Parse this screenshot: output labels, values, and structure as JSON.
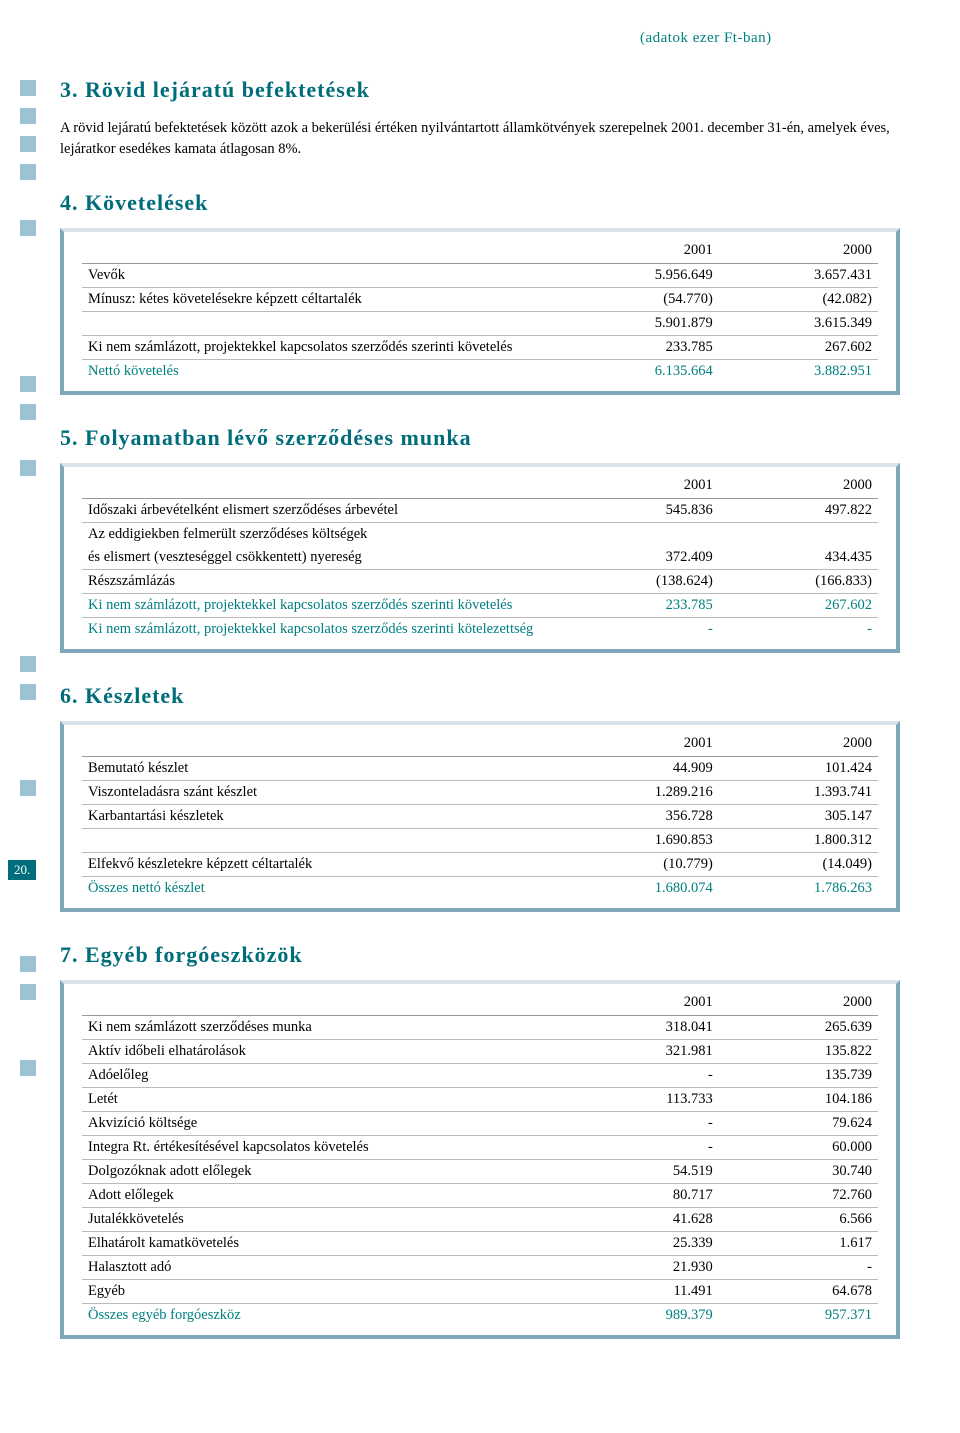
{
  "colors": {
    "accent": "#006d7a",
    "teal_text": "#008080",
    "square": "#9cc3d4",
    "table_border": "#7fa8b8"
  },
  "page_number": "20.",
  "unit_note": "(adatok ezer Ft-ban)",
  "sections": {
    "s3": {
      "heading": "3. Rövid lejáratú befektetések",
      "intro": "A rövid lejáratú befektetések között azok a bekerülési értéken nyilvántartott államkötvények szerepelnek 2001. december 31-én, amelyek éves, lejáratkor esedékes kamata átlagosan 8%."
    },
    "s4": {
      "heading": "4. Követelések",
      "col1": "2001",
      "col2": "2000",
      "rows": [
        {
          "label": "Vevők",
          "v1": "5.956.649",
          "v2": "3.657.431"
        },
        {
          "label": "Mínusz: kétes követelésekre képzett céltartalék",
          "v1": "(54.770)",
          "v2": "(42.082)"
        },
        {
          "label": "",
          "v1": "5.901.879",
          "v2": "3.615.349"
        },
        {
          "label": "Ki nem számlázott, projektekkel kapcsolatos szerződés szerinti követelés",
          "v1": "233.785",
          "v2": "267.602"
        },
        {
          "label": "Nettó követelés",
          "v1": "6.135.664",
          "v2": "3.882.951",
          "teal": true
        }
      ]
    },
    "s5": {
      "heading": "5. Folyamatban lévő szerződéses munka",
      "col1": "2001",
      "col2": "2000",
      "rows": [
        {
          "label": "Időszaki árbevételként elismert szerződéses árbevétel",
          "v1": "545.836",
          "v2": "497.822"
        },
        {
          "label": "Az eddigiekben felmerült szerződéses költségek",
          "v1": "",
          "v2": "",
          "noborder": true
        },
        {
          "label": "és elismert (veszteséggel csökkentett) nyereség",
          "v1": "372.409",
          "v2": "434.435"
        },
        {
          "label": "Részszámlázás",
          "v1": "(138.624)",
          "v2": "(166.833)"
        },
        {
          "label": "Ki nem számlázott, projektekkel kapcsolatos szerződés szerinti követelés",
          "v1": "233.785",
          "v2": "267.602",
          "teal": true
        },
        {
          "label": "Ki nem számlázott, projektekkel kapcsolatos szerződés szerinti kötelezettség",
          "v1": "-",
          "v2": "-",
          "teal": true
        }
      ]
    },
    "s6": {
      "heading": "6. Készletek",
      "col1": "2001",
      "col2": "2000",
      "rows": [
        {
          "label": "Bemutató készlet",
          "v1": "44.909",
          "v2": "101.424"
        },
        {
          "label": "Viszonteladásra szánt készlet",
          "v1": "1.289.216",
          "v2": "1.393.741"
        },
        {
          "label": "Karbantartási készletek",
          "v1": "356.728",
          "v2": "305.147"
        },
        {
          "label": "",
          "v1": "1.690.853",
          "v2": "1.800.312"
        },
        {
          "label": "Elfekvő készletekre képzett céltartalék",
          "v1": "(10.779)",
          "v2": "(14.049)"
        },
        {
          "label": "Összes nettó készlet",
          "v1": "1.680.074",
          "v2": "1.786.263",
          "teal": true
        }
      ]
    },
    "s7": {
      "heading": "7. Egyéb forgóeszközök",
      "col1": "2001",
      "col2": "2000",
      "rows": [
        {
          "label": "Ki nem számlázott szerződéses munka",
          "v1": "318.041",
          "v2": "265.639"
        },
        {
          "label": "Aktív időbeli elhatárolások",
          "v1": "321.981",
          "v2": "135.822"
        },
        {
          "label": "Adóelőleg",
          "v1": "-",
          "v2": "135.739"
        },
        {
          "label": "Letét",
          "v1": "113.733",
          "v2": "104.186"
        },
        {
          "label": "Akvizíció költsége",
          "v1": "-",
          "v2": "79.624"
        },
        {
          "label": "Integra Rt. értékesítésével kapcsolatos követelés",
          "v1": "-",
          "v2": "60.000"
        },
        {
          "label": "Dolgozóknak adott előlegek",
          "v1": "54.519",
          "v2": "30.740"
        },
        {
          "label": "Adott előlegek",
          "v1": "80.717",
          "v2": "72.760"
        },
        {
          "label": "Jutalékkövetelés",
          "v1": "41.628",
          "v2": "6.566"
        },
        {
          "label": "Elhatárolt kamatkövetelés",
          "v1": "25.339",
          "v2": "1.617"
        },
        {
          "label": "Halasztott adó",
          "v1": "21.930",
          "v2": "-"
        },
        {
          "label": "Egyéb",
          "v1": "11.491",
          "v2": "64.678"
        },
        {
          "label": "Összes egyéb forgóeszköz",
          "v1": "989.379",
          "v2": "957.371",
          "teal": true
        }
      ]
    }
  }
}
